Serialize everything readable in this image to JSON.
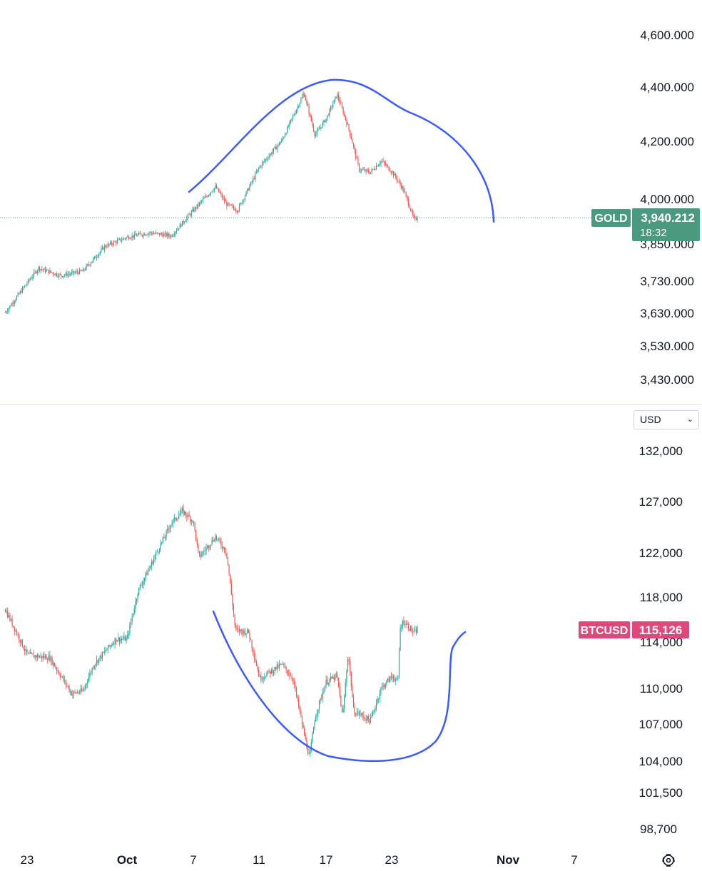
{
  "currency_selector": {
    "value": "USD"
  },
  "time_axis": {
    "labels": [
      "23",
      "Oct",
      "7",
      "11",
      "17",
      "23",
      "Nov",
      "7"
    ]
  },
  "colors": {
    "up": "#26a69a",
    "down": "#ef5350",
    "annotation": "#3d5afe",
    "gold_tag": "#4a9a80",
    "btc_tag": "#e0487a"
  },
  "icons": {
    "settings": "gear-icon"
  },
  "chart_data": [
    {
      "type": "candlestick",
      "symbol": "GOLD",
      "last_price_label": "3,940.212",
      "countdown": "18:32",
      "last_price": 3940.212,
      "y_tick_labels": [
        "4,600.000",
        "4,400.000",
        "4,200.000",
        "4,000.000",
        "3,850.000",
        "3,730.000",
        "3,630.000",
        "3,530.000",
        "3,430.000"
      ],
      "y_ticks": [
        4600,
        4400,
        4200,
        4000,
        3850,
        3730,
        3630,
        3530,
        3430
      ],
      "y_scale": "log",
      "x_range": [
        "Sep 20",
        "Oct 27"
      ],
      "path_points": [
        [
          "Sep 20",
          3630
        ],
        [
          "Sep 23",
          3770
        ],
        [
          "Sep 25",
          3745
        ],
        [
          "Sep 27",
          3760
        ],
        [
          "Sep 29",
          3840
        ],
        [
          "Oct 1",
          3870
        ],
        [
          "Oct 3",
          3885
        ],
        [
          "Oct 5",
          3875
        ],
        [
          "Oct 7",
          3960
        ],
        [
          "Oct 9",
          4040
        ],
        [
          "Oct 10",
          3980
        ],
        [
          "Oct 11",
          3960
        ],
        [
          "Oct 13",
          4110
        ],
        [
          "Oct 15",
          4200
        ],
        [
          "Oct 17",
          4375
        ],
        [
          "Oct 18",
          4220
        ],
        [
          "Oct 19",
          4280
        ],
        [
          "Oct 20",
          4370
        ],
        [
          "Oct 21",
          4250
        ],
        [
          "Oct 22",
          4100
        ],
        [
          "Oct 23",
          4090
        ],
        [
          "Oct 24",
          4130
        ],
        [
          "Oct 25",
          4090
        ],
        [
          "Oct 26",
          4030
        ],
        [
          "Oct 27",
          3925
        ],
        [
          "Oct 27.3",
          3940
        ]
      ],
      "annotation": "hand-drawn dome curve over the rally"
    },
    {
      "type": "candlestick",
      "symbol": "BTCUSD",
      "last_price_label": "115,126",
      "last_price": 115126,
      "y_tick_labels": [
        "132,000",
        "127,000",
        "122,000",
        "118,000",
        "114,000",
        "110,000",
        "107,000",
        "104,000",
        "101,500",
        "98,700"
      ],
      "y_ticks": [
        132000,
        127000,
        122000,
        118000,
        114000,
        110000,
        107000,
        104000,
        101500,
        98700
      ],
      "y_scale": "log",
      "x_range": [
        "Sep 20",
        "Oct 27"
      ],
      "path_points": [
        [
          "Sep 20",
          116800
        ],
        [
          "Sep 22",
          112800
        ],
        [
          "Sep 24",
          112600
        ],
        [
          "Sep 26",
          109500
        ],
        [
          "Sep 27",
          109700
        ],
        [
          "Sep 28",
          112000
        ],
        [
          "Sep 30",
          114200
        ],
        [
          "Oct 1",
          114200
        ],
        [
          "Oct 2",
          118500
        ],
        [
          "Oct 3",
          120500
        ],
        [
          "Oct 5",
          124800
        ],
        [
          "Oct 6",
          126000
        ],
        [
          "Oct 7",
          125000
        ],
        [
          "Oct 7.5",
          121500
        ],
        [
          "Oct 9",
          123500
        ],
        [
          "Oct 10",
          122000
        ],
        [
          "Oct 10.8",
          115000
        ],
        [
          "Oct 12",
          114800
        ],
        [
          "Oct 13",
          110800
        ],
        [
          "Oct 15",
          112000
        ],
        [
          "Oct 16",
          110800
        ],
        [
          "Oct 17",
          106200
        ],
        [
          "Oct 17.5",
          104200
        ],
        [
          "Oct 18",
          107500
        ],
        [
          "Oct 19",
          110500
        ],
        [
          "Oct 20",
          111000
        ],
        [
          "Oct 20.5",
          107500
        ],
        [
          "Oct 21",
          113000
        ],
        [
          "Oct 21.5",
          108000
        ],
        [
          "Oct 22",
          107800
        ],
        [
          "Oct 23",
          107200
        ],
        [
          "Oct 24",
          110000
        ],
        [
          "Oct 25",
          111000
        ],
        [
          "Oct 25.5",
          110500
        ],
        [
          "Oct 25.7",
          115200
        ],
        [
          "Oct 26",
          115800
        ],
        [
          "Oct 27",
          114700
        ],
        [
          "Oct 27.3",
          115126
        ]
      ],
      "annotation": "hand-drawn rounded-bottom curve under the decline"
    }
  ]
}
